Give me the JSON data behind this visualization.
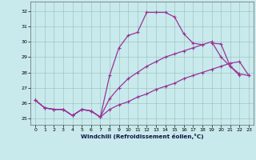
{
  "bg_color": "#c8eaec",
  "grid_color": "#99bbbb",
  "line_color": "#993399",
  "xlabel": "Windchill (Refroidissement éolien,°C)",
  "xlim": [
    -0.5,
    23.5
  ],
  "ylim": [
    24.6,
    32.6
  ],
  "yticks": [
    25,
    26,
    27,
    28,
    29,
    30,
    31,
    32
  ],
  "xticks": [
    0,
    1,
    2,
    3,
    4,
    5,
    6,
    7,
    8,
    9,
    10,
    11,
    12,
    13,
    14,
    15,
    16,
    17,
    18,
    19,
    20,
    21,
    22,
    23
  ],
  "curve1_x": [
    0,
    1,
    2,
    3,
    4,
    5,
    6,
    7,
    8,
    9,
    10,
    11,
    12,
    13,
    14,
    15,
    16,
    17,
    18
  ],
  "curve1_y": [
    26.2,
    25.7,
    25.6,
    25.6,
    25.2,
    25.6,
    25.5,
    25.1,
    27.8,
    29.6,
    30.4,
    30.6,
    31.9,
    31.9,
    31.9,
    31.6,
    30.5,
    29.9,
    29.8
  ],
  "curve2_x": [
    0,
    1,
    2,
    3,
    4,
    5,
    6,
    7,
    8,
    9,
    10,
    11,
    12,
    13,
    14,
    15,
    16,
    17,
    18,
    19,
    20,
    21,
    22,
    23
  ],
  "curve2_y": [
    26.2,
    25.7,
    25.6,
    25.6,
    25.2,
    25.6,
    25.5,
    25.1,
    25.6,
    25.9,
    26.1,
    26.4,
    26.6,
    26.9,
    27.1,
    27.3,
    27.6,
    27.8,
    28.0,
    28.2,
    28.4,
    28.6,
    28.7,
    27.8
  ],
  "curve3_x": [
    0,
    1,
    2,
    3,
    4,
    5,
    6,
    7,
    8,
    9,
    10,
    11,
    12,
    13,
    14,
    15,
    16,
    17,
    18,
    19,
    20,
    21,
    22,
    23
  ],
  "curve3_y": [
    26.2,
    25.7,
    25.6,
    25.6,
    25.2,
    25.6,
    25.5,
    25.1,
    26.3,
    27.0,
    27.6,
    28.0,
    28.4,
    28.7,
    29.0,
    29.2,
    29.4,
    29.6,
    29.8,
    30.0,
    29.0,
    28.4,
    27.9,
    27.8
  ],
  "curve4_x": [
    19,
    20,
    21,
    22
  ],
  "curve4_y": [
    29.9,
    29.85,
    28.4,
    27.8
  ]
}
